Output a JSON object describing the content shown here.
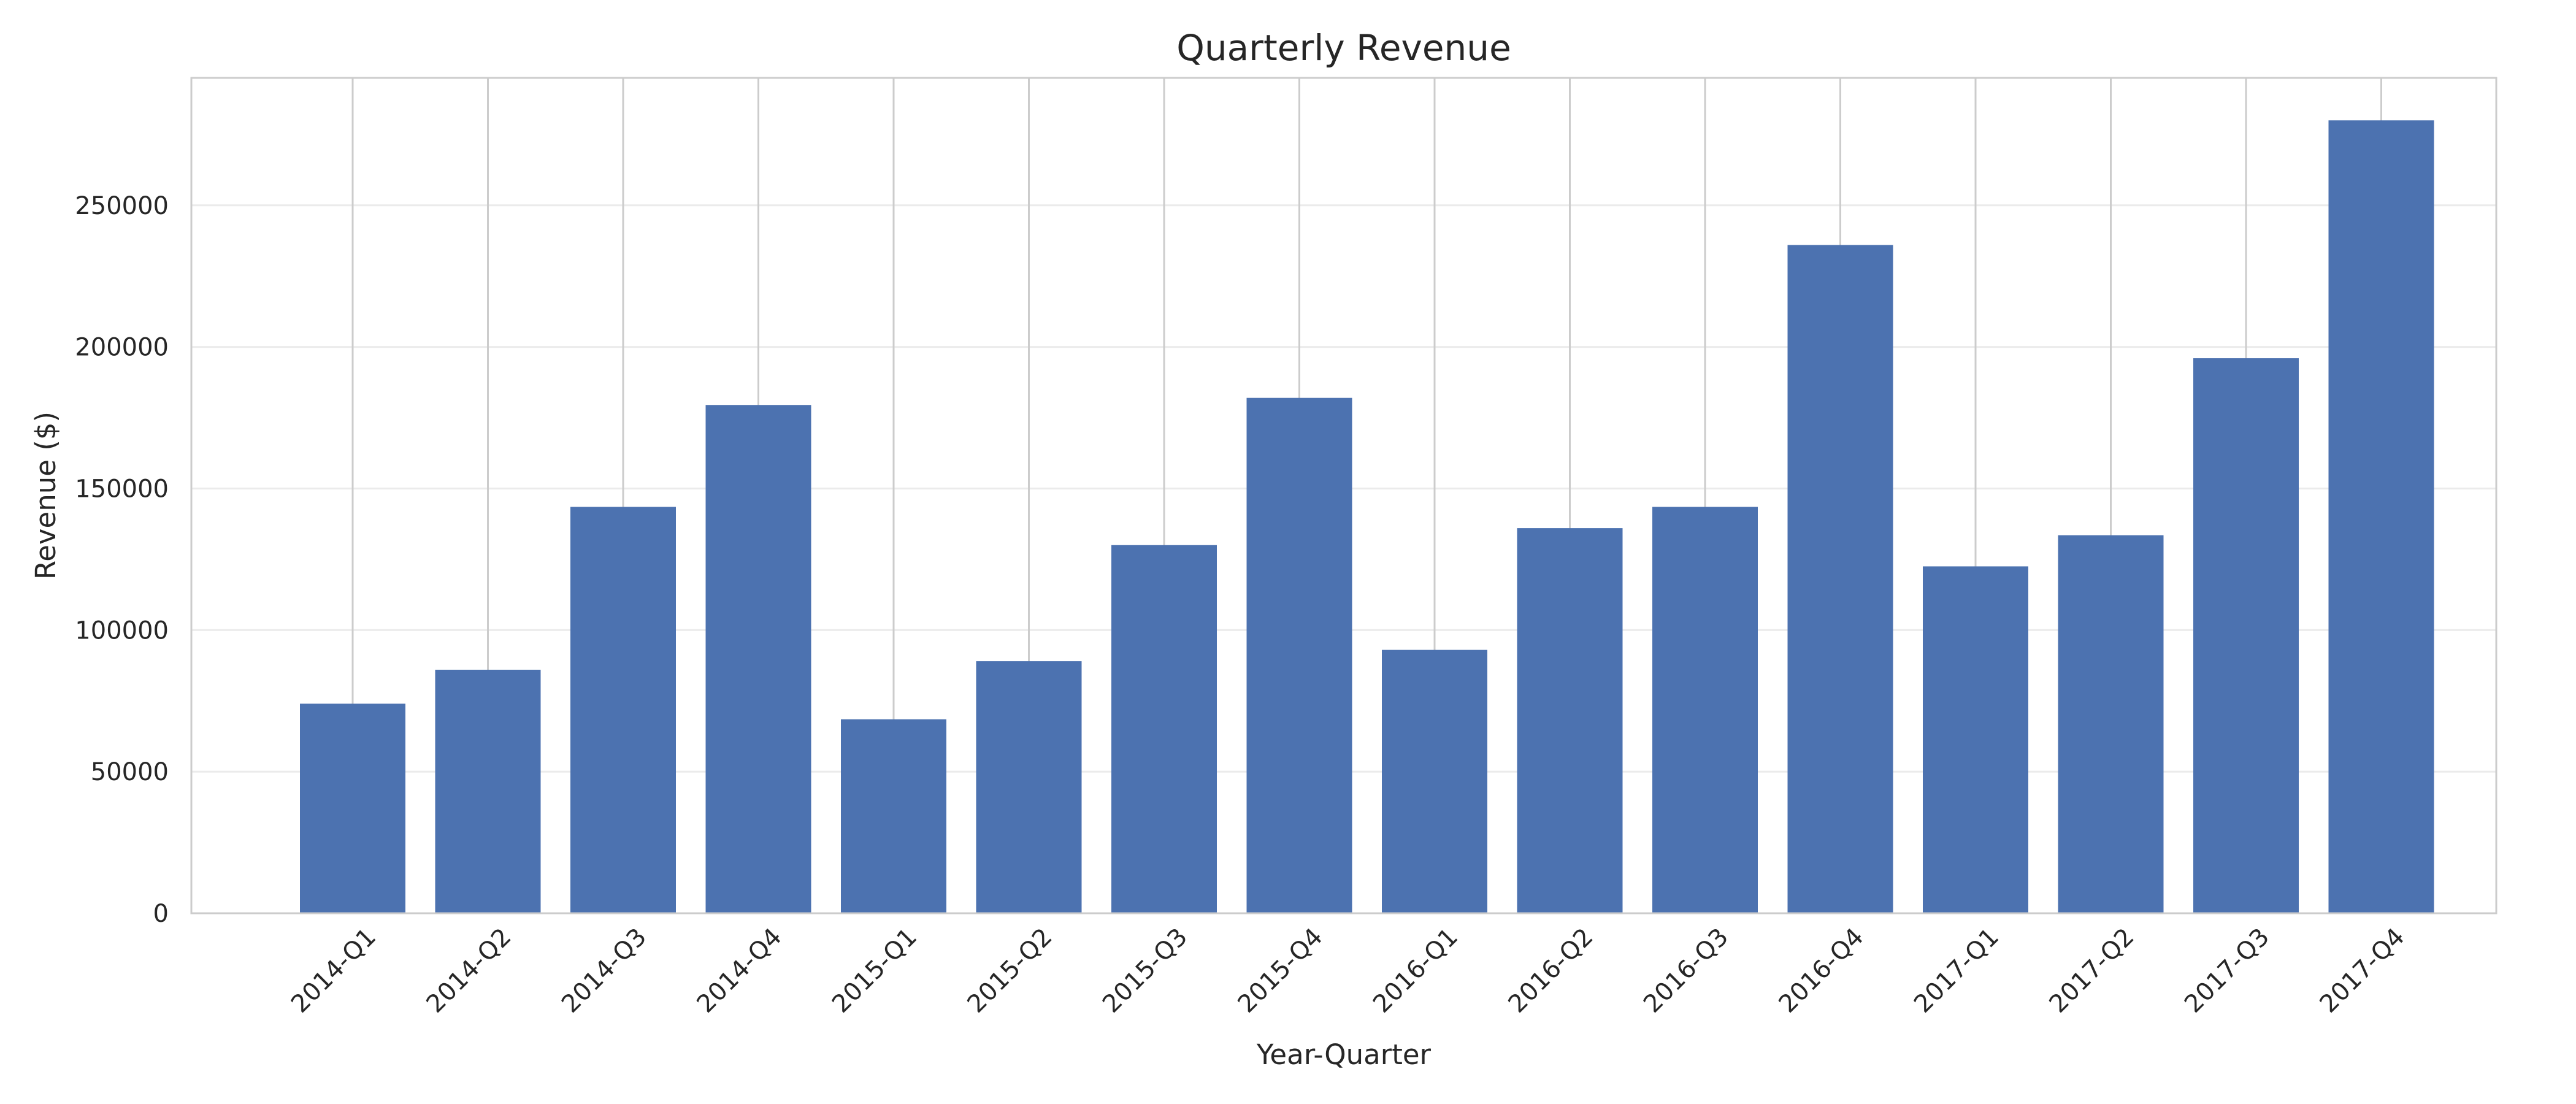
{
  "chart_data": {
    "type": "bar",
    "title": "Quarterly Revenue",
    "xlabel": "Year-Quarter",
    "ylabel": "Revenue ($)",
    "categories": [
      "2014-Q1",
      "2014-Q2",
      "2014-Q3",
      "2014-Q4",
      "2015-Q1",
      "2015-Q2",
      "2015-Q3",
      "2015-Q4",
      "2016-Q1",
      "2016-Q2",
      "2016-Q3",
      "2016-Q4",
      "2017-Q1",
      "2017-Q2",
      "2017-Q3",
      "2017-Q4"
    ],
    "values": [
      74000,
      86000,
      143500,
      179500,
      68500,
      89000,
      130000,
      182000,
      93000,
      136000,
      143500,
      236000,
      122500,
      133500,
      196000,
      280000
    ],
    "yticks": [
      0,
      50000,
      100000,
      150000,
      200000,
      250000
    ],
    "ytick_labels": [
      "0",
      "50000",
      "100000",
      "150000",
      "200000",
      "250000"
    ],
    "ylim": [
      0,
      295000
    ],
    "grid": "horizontal gridlines plus vertical gridlines at category positions",
    "bar_color": "#4c72b0",
    "grid_color": "#cccccc",
    "frame_color": "#cccccc"
  }
}
